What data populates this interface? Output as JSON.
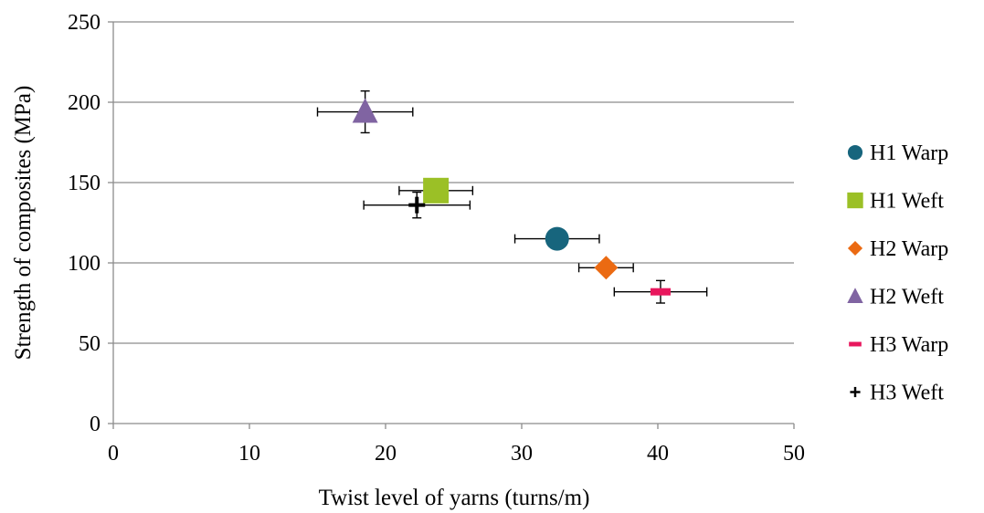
{
  "chart_data": {
    "type": "scatter",
    "title": "",
    "xlabel": "Twist level of yarns (turns/m)",
    "ylabel": "Strength of composites (MPa)",
    "xlim": [
      0,
      50
    ],
    "ylim": [
      0,
      250
    ],
    "xticks": [
      0,
      10,
      20,
      30,
      40,
      50
    ],
    "yticks": [
      0,
      50,
      100,
      150,
      200,
      250
    ],
    "grid": "horizontal",
    "legend_position": "right",
    "series": [
      {
        "name": "H1 Warp",
        "marker": "circle",
        "color": "#17657D",
        "x": 32.6,
        "y": 115,
        "x_err": 3.1,
        "y_err": null
      },
      {
        "name": "H1 Weft",
        "marker": "square",
        "color": "#9BC026",
        "x": 23.7,
        "y": 145,
        "x_err": 2.7,
        "y_err": null
      },
      {
        "name": "H2 Warp",
        "marker": "diamond",
        "color": "#EB6A12",
        "x": 36.2,
        "y": 97,
        "x_err": 2.0,
        "y_err": null
      },
      {
        "name": "H2 Weft",
        "marker": "triangle",
        "color": "#8064A2",
        "x": 18.5,
        "y": 194,
        "x_err": 3.5,
        "y_err": 13
      },
      {
        "name": "H3 Warp",
        "marker": "dash",
        "color": "#E8175D",
        "x": 40.2,
        "y": 82,
        "x_err": 3.4,
        "y_err": 7
      },
      {
        "name": "H3 Weft",
        "marker": "plus",
        "color": "#000000",
        "x": 22.3,
        "y": 136,
        "x_err": 3.9,
        "y_err": 8
      }
    ]
  }
}
